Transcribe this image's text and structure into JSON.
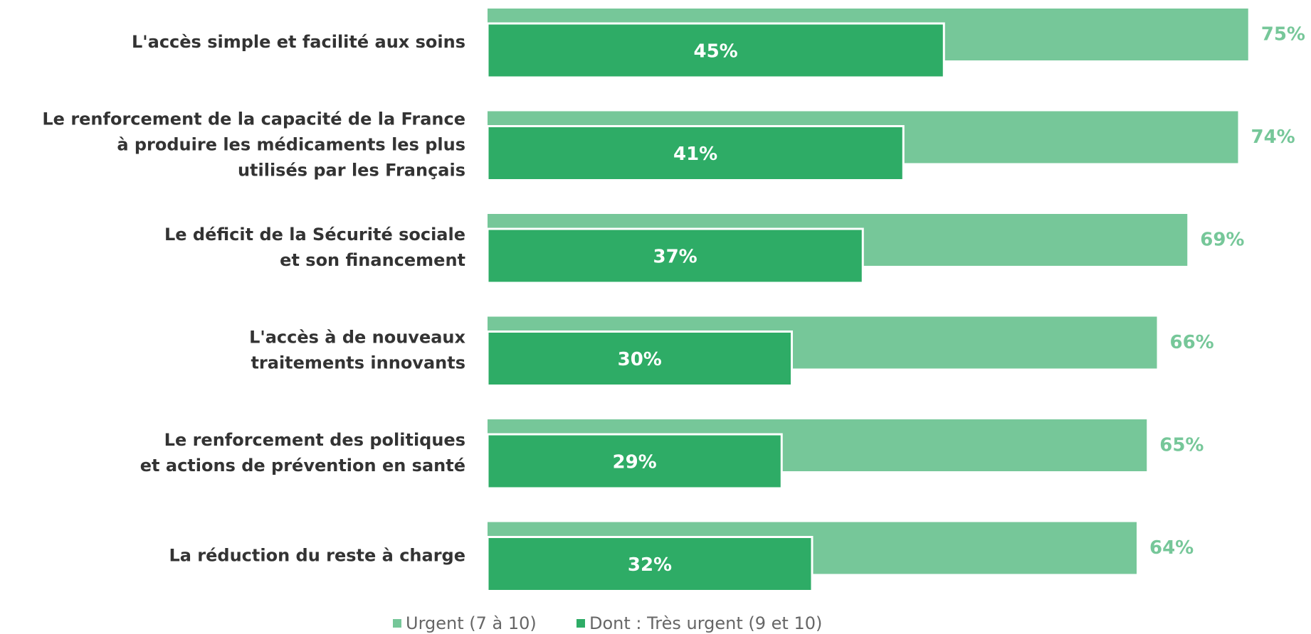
{
  "chart_data": {
    "type": "bar",
    "orientation": "horizontal",
    "categories": [
      [
        "L'accès simple et facilité aux soins"
      ],
      [
        "Le renforcement de la capacité de la France",
        "à produire les médicaments les plus",
        "utilisés par les Français"
      ],
      [
        "Le déficit de la Sécurité sociale",
        "et son financement"
      ],
      [
        "L'accès à de nouveaux",
        "traitements innovants"
      ],
      [
        "Le renforcement des politiques",
        "et actions de prévention en santé"
      ],
      [
        "La réduction du reste à charge"
      ]
    ],
    "series": [
      {
        "name": "Urgent (7 à 10)",
        "color": "#76c799",
        "values": [
          75,
          74,
          69,
          66,
          65,
          64
        ],
        "value_labels": [
          "75%",
          "74%",
          "69%",
          "66%",
          "65%",
          "64%"
        ]
      },
      {
        "name": "Dont : Très urgent (9 et 10)",
        "color": "#2eac66",
        "values": [
          45,
          41,
          37,
          30,
          29,
          32
        ],
        "value_labels": [
          "45%",
          "41%",
          "37%",
          "30%",
          "29%",
          "32%"
        ]
      }
    ]
  }
}
